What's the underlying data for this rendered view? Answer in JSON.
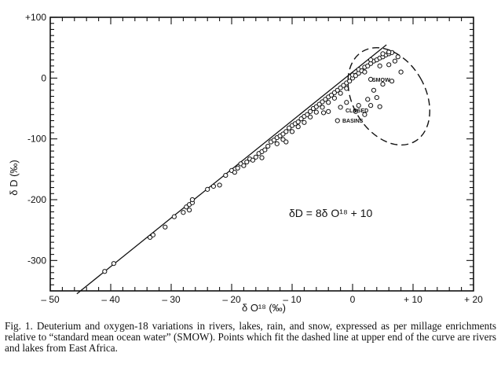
{
  "chart_data": {
    "type": "scatter",
    "xlabel": "δ O¹⁸ (‰)",
    "ylabel": "δ D (‰)",
    "xlim": [
      -50,
      20
    ],
    "ylim": [
      -350,
      100
    ],
    "x_ticks": [
      {
        "value": -50,
        "label": "– 50"
      },
      {
        "value": -40,
        "label": "– 40"
      },
      {
        "value": -30,
        "label": "– 30"
      },
      {
        "value": -20,
        "label": "– 20"
      },
      {
        "value": -10,
        "label": "– 10"
      },
      {
        "value": 0,
        "label": "0"
      },
      {
        "value": 10,
        "label": "+ 10"
      },
      {
        "value": 20,
        "label": "+ 20"
      }
    ],
    "y_ticks": [
      {
        "value": 100,
        "label": "+100"
      },
      {
        "value": 0,
        "label": "0"
      },
      {
        "value": -100,
        "label": "-100"
      },
      {
        "value": -200,
        "label": "-200"
      },
      {
        "value": -300,
        "label": "-300"
      }
    ],
    "grid": false,
    "equation_label": "δD = 8δ O¹⁸ + 10",
    "meteoric_line": {
      "slope": 8,
      "intercept": 10,
      "x_range": [
        -45.6,
        5.6
      ]
    },
    "dashed_line": {
      "points": [
        [
          0,
          5
        ],
        [
          7,
          45
        ]
      ]
    },
    "annotations": {
      "smow": "SMOW",
      "closed": "CLOSED",
      "basins": "BASINS"
    },
    "closed_basins_region": {
      "center": [
        6,
        -30
      ],
      "rx": 8.6,
      "ry": 60,
      "rotation_deg": -30
    },
    "series": [
      {
        "marker": "open-circle",
        "points": [
          [
            -41,
            -318
          ],
          [
            -39.5,
            -305
          ],
          [
            -33.5,
            -262
          ],
          [
            -33,
            -258
          ],
          [
            -31,
            -245
          ],
          [
            -29.5,
            -228
          ],
          [
            -28,
            -221
          ],
          [
            -27.5,
            -212
          ],
          [
            -27,
            -208
          ],
          [
            -27,
            -217
          ],
          [
            -26.5,
            -205
          ],
          [
            -26.5,
            -200
          ],
          [
            -24,
            -183
          ],
          [
            -23,
            -178
          ],
          [
            -22,
            -176
          ],
          [
            -21,
            -160
          ],
          [
            -20,
            -152
          ],
          [
            -19.5,
            -155
          ],
          [
            -19,
            -148
          ],
          [
            -18.5,
            -141
          ],
          [
            -18,
            -144
          ],
          [
            -17.5,
            -138
          ],
          [
            -17,
            -133
          ],
          [
            -16.5,
            -135
          ],
          [
            -16,
            -130
          ],
          [
            -15.5,
            -124
          ],
          [
            -15,
            -121
          ],
          [
            -15,
            -131
          ],
          [
            -14.5,
            -118
          ],
          [
            -14,
            -112
          ],
          [
            -13.5,
            -105
          ],
          [
            -13,
            -102
          ],
          [
            -12.5,
            -98
          ],
          [
            -12.5,
            -108
          ],
          [
            -12,
            -95
          ],
          [
            -11.5,
            -92
          ],
          [
            -11.5,
            -101
          ],
          [
            -11,
            -88
          ],
          [
            -11,
            -105
          ],
          [
            -10.5,
            -82
          ],
          [
            -10,
            -78
          ],
          [
            -10,
            -88
          ],
          [
            -9.5,
            -75
          ],
          [
            -9,
            -72
          ],
          [
            -9,
            -80
          ],
          [
            -8.5,
            -67
          ],
          [
            -8,
            -63
          ],
          [
            -8,
            -73
          ],
          [
            -7.5,
            -60
          ],
          [
            -7,
            -55
          ],
          [
            -7,
            -64
          ],
          [
            -6.5,
            -50
          ],
          [
            -6,
            -47
          ],
          [
            -6,
            -56
          ],
          [
            -5.5,
            -43
          ],
          [
            -5,
            -39
          ],
          [
            -5,
            -48
          ],
          [
            -4.5,
            -35
          ],
          [
            -4,
            -31
          ],
          [
            -4,
            -40
          ],
          [
            -3.5,
            -28
          ],
          [
            -3,
            -24
          ],
          [
            -3,
            -33
          ],
          [
            -2.5,
            -20
          ],
          [
            -2,
            -16
          ],
          [
            -2,
            -25
          ],
          [
            -1.5,
            -12
          ],
          [
            -1,
            -8
          ],
          [
            -1,
            -17
          ],
          [
            -0.5,
            -5
          ],
          [
            0,
            0
          ],
          [
            0,
            5
          ],
          [
            0.5,
            4
          ],
          [
            1,
            8
          ],
          [
            1,
            14
          ],
          [
            1.5,
            12
          ],
          [
            2,
            18
          ],
          [
            2.5,
            20
          ],
          [
            3,
            24
          ],
          [
            3.5,
            28
          ],
          [
            4,
            30
          ],
          [
            4.5,
            33
          ],
          [
            5,
            35
          ],
          [
            5.5,
            38
          ],
          [
            6,
            40
          ],
          [
            6.5,
            42
          ],
          [
            5,
            40
          ],
          [
            6,
            43
          ],
          [
            3,
            30
          ],
          [
            2,
            10
          ],
          [
            4.5,
            20
          ],
          [
            6,
            22
          ],
          [
            7,
            28
          ],
          [
            7.5,
            35
          ],
          [
            8,
            10
          ],
          [
            3,
            -2
          ],
          [
            5,
            -10
          ],
          [
            3.5,
            -20
          ],
          [
            2.5,
            -35
          ],
          [
            1,
            -45
          ],
          [
            -1,
            -40
          ],
          [
            -2,
            -48
          ],
          [
            -4,
            -55
          ],
          [
            3,
            -45
          ],
          [
            4,
            -32
          ],
          [
            6.5,
            -5
          ],
          [
            4.5,
            -47
          ],
          [
            0.5,
            -55
          ],
          [
            2,
            -60
          ],
          [
            -2.5,
            -70
          ],
          [
            -4.8,
            -57
          ]
        ]
      }
    ]
  },
  "caption": "Fig. 1. Deuterium and oxygen-18 variations in rivers, lakes, rain, and snow, expressed as per millage enrichments relative to “standard mean ocean water” (SMOW). Points which fit the dashed line at upper end of the curve are rivers and lakes from East Africa."
}
